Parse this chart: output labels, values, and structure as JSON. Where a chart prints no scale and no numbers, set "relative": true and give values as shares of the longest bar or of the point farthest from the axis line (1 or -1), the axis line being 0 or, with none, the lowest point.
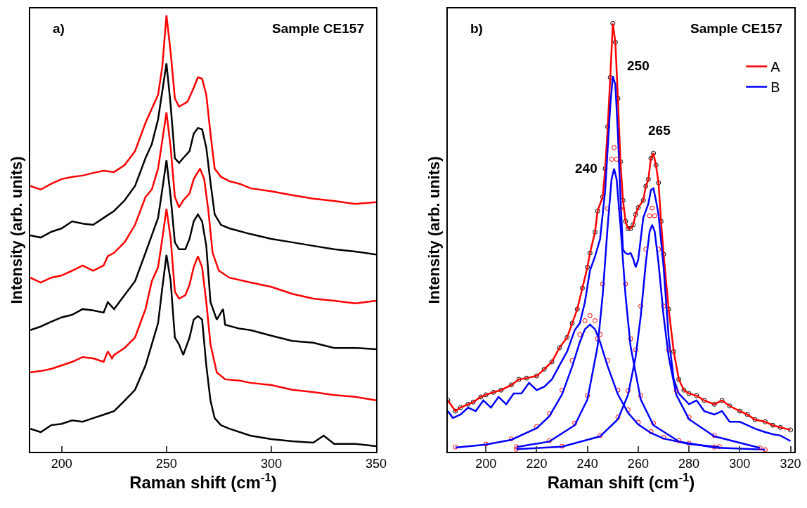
{
  "chart_data": [
    {
      "type": "line",
      "relative": true,
      "xlabel": "Raman shift (cm$^{-1}$)",
      "ylabel": "Intensity (arb. units)",
      "xlim": [
        185,
        350
      ],
      "xticks": [
        200,
        250,
        300,
        350
      ],
      "tick_labels": "x",
      "grid": false,
      "legend": false,
      "annotations": [
        "a)",
        "Sample CE157"
      ],
      "series": [
        {
          "color": "#ff0000",
          "x": [
            185,
            190,
            195,
            200,
            205,
            210,
            215,
            220,
            225,
            230,
            235,
            240,
            243,
            246,
            248,
            250,
            252,
            254,
            256,
            260,
            263,
            265,
            267,
            269,
            271,
            273,
            276,
            280,
            285,
            290,
            300,
            310,
            320,
            330,
            340,
            350
          ],
          "values": [
            0.609,
            0.601,
            0.614,
            0.625,
            0.63,
            0.633,
            0.639,
            0.644,
            0.641,
            0.657,
            0.689,
            0.754,
            0.786,
            0.818,
            0.882,
            1.0,
            0.915,
            0.81,
            0.791,
            0.802,
            0.834,
            0.858,
            0.855,
            0.818,
            0.729,
            0.649,
            0.63,
            0.62,
            0.614,
            0.604,
            0.597,
            0.588,
            0.58,
            0.575,
            0.568,
            0.572
          ]
        },
        {
          "color": "#000000",
          "x": [
            185,
            190,
            195,
            200,
            205,
            210,
            215,
            220,
            225,
            230,
            235,
            240,
            243,
            246,
            248,
            250,
            252,
            254,
            256,
            258,
            261,
            263,
            265,
            267,
            269,
            271,
            273,
            276,
            280,
            290,
            300,
            310,
            320,
            330,
            340,
            350
          ],
          "values": [
            0.496,
            0.491,
            0.504,
            0.512,
            0.528,
            0.523,
            0.52,
            0.536,
            0.552,
            0.576,
            0.609,
            0.673,
            0.705,
            0.762,
            0.826,
            0.89,
            0.794,
            0.673,
            0.662,
            0.673,
            0.689,
            0.729,
            0.742,
            0.739,
            0.697,
            0.617,
            0.544,
            0.52,
            0.512,
            0.499,
            0.488,
            0.48,
            0.472,
            0.464,
            0.459,
            0.452
          ]
        },
        {
          "color": "#ff0000",
          "x": [
            185,
            190,
            195,
            200,
            205,
            210,
            215,
            220,
            222,
            225,
            230,
            235,
            240,
            243,
            246,
            248,
            250,
            252,
            254,
            256,
            258,
            261,
            263,
            266,
            268,
            270,
            272,
            275,
            280,
            290,
            300,
            310,
            320,
            330,
            340,
            350
          ],
          "values": [
            0.399,
            0.388,
            0.399,
            0.404,
            0.415,
            0.427,
            0.415,
            0.427,
            0.448,
            0.456,
            0.48,
            0.52,
            0.584,
            0.601,
            0.649,
            0.713,
            0.778,
            0.697,
            0.584,
            0.56,
            0.576,
            0.592,
            0.625,
            0.649,
            0.625,
            0.552,
            0.456,
            0.415,
            0.399,
            0.388,
            0.378,
            0.362,
            0.351,
            0.346,
            0.34,
            0.346
          ]
        },
        {
          "color": "#000000",
          "x": [
            185,
            190,
            195,
            200,
            205,
            210,
            215,
            220,
            222,
            225,
            230,
            235,
            240,
            243,
            246,
            248,
            250,
            252,
            254,
            256,
            259,
            261,
            263,
            265,
            267,
            269,
            271,
            274,
            277,
            278,
            285,
            290,
            300,
            310,
            320,
            330,
            340,
            350
          ],
          "values": [
            0.279,
            0.287,
            0.298,
            0.308,
            0.314,
            0.327,
            0.324,
            0.319,
            0.343,
            0.327,
            0.359,
            0.391,
            0.456,
            0.496,
            0.536,
            0.601,
            0.668,
            0.584,
            0.48,
            0.464,
            0.464,
            0.488,
            0.528,
            0.544,
            0.528,
            0.472,
            0.343,
            0.303,
            0.327,
            0.291,
            0.282,
            0.279,
            0.266,
            0.254,
            0.25,
            0.238,
            0.238,
            0.235
          ]
        },
        {
          "color": "#ff0000",
          "x": [
            185,
            190,
            195,
            200,
            205,
            210,
            215,
            220,
            222,
            224,
            225,
            230,
            235,
            240,
            243,
            246,
            248,
            250,
            252,
            254,
            256,
            259,
            261,
            263,
            265,
            267,
            269,
            271,
            274,
            278,
            285,
            290,
            300,
            310,
            320,
            330,
            340,
            350
          ],
          "values": [
            0.182,
            0.185,
            0.19,
            0.198,
            0.206,
            0.217,
            0.214,
            0.206,
            0.23,
            0.214,
            0.222,
            0.238,
            0.262,
            0.327,
            0.391,
            0.423,
            0.488,
            0.557,
            0.488,
            0.367,
            0.351,
            0.359,
            0.383,
            0.423,
            0.448,
            0.423,
            0.343,
            0.246,
            0.182,
            0.166,
            0.163,
            0.158,
            0.153,
            0.142,
            0.137,
            0.13,
            0.126,
            0.118
          ]
        },
        {
          "color": "#000000",
          "x": [
            185,
            190,
            195,
            200,
            205,
            210,
            215,
            220,
            225,
            230,
            235,
            240,
            243,
            246,
            248,
            250,
            252,
            254,
            256,
            258,
            261,
            263,
            265,
            267,
            269,
            271,
            273,
            276,
            280,
            290,
            300,
            310,
            320,
            325,
            330,
            340,
            350
          ],
          "values": [
            0.053,
            0.045,
            0.061,
            0.064,
            0.072,
            0.069,
            0.077,
            0.085,
            0.093,
            0.117,
            0.142,
            0.198,
            0.246,
            0.295,
            0.375,
            0.451,
            0.391,
            0.262,
            0.246,
            0.222,
            0.262,
            0.303,
            0.311,
            0.303,
            0.198,
            0.117,
            0.077,
            0.061,
            0.053,
            0.037,
            0.029,
            0.024,
            0.021,
            0.037,
            0.018,
            0.018,
            0.013
          ]
        }
      ]
    },
    {
      "type": "line",
      "relative": true,
      "xlabel": "Raman shift (cm$^{-1}$)",
      "ylabel": "Intensity (arb. units)",
      "xlim": [
        185,
        321.5
      ],
      "xticks": [
        200,
        220,
        240,
        260,
        280,
        300,
        320
      ],
      "tick_labels": "x",
      "grid": false,
      "legend": "top right",
      "annotations": [
        "b)",
        "Sample CE157",
        "240",
        "250",
        "265"
      ],
      "series": [
        {
          "type": "scatter",
          "marker": "circle",
          "color": "#000000",
          "x": [
            185,
            188,
            190,
            193,
            195,
            198,
            200,
            203,
            206,
            210,
            213,
            216,
            220,
            223,
            226,
            229,
            232,
            234,
            236,
            238,
            240,
            241,
            243,
            244,
            246,
            247,
            248,
            249,
            250,
            251,
            252,
            253,
            254,
            255,
            256,
            257,
            258,
            259,
            260,
            262,
            263,
            264,
            265,
            266,
            267,
            268,
            269,
            270,
            272,
            274,
            276,
            278,
            280,
            283,
            286,
            290,
            293,
            296,
            300,
            303,
            306,
            310,
            313,
            316,
            320
          ],
          "values": [
            0.12,
            0.095,
            0.103,
            0.111,
            0.116,
            0.128,
            0.133,
            0.139,
            0.144,
            0.156,
            0.169,
            0.172,
            0.177,
            0.193,
            0.21,
            0.243,
            0.267,
            0.3,
            0.333,
            0.382,
            0.431,
            0.464,
            0.513,
            0.562,
            0.595,
            0.661,
            0.759,
            0.874,
            1.0,
            0.956,
            0.825,
            0.677,
            0.587,
            0.538,
            0.521,
            0.521,
            0.53,
            0.554,
            0.57,
            0.587,
            0.62,
            0.636,
            0.685,
            0.697,
            0.669,
            0.628,
            0.538,
            0.461,
            0.333,
            0.234,
            0.169,
            0.144,
            0.136,
            0.131,
            0.12,
            0.111,
            0.12,
            0.107,
            0.095,
            0.087,
            0.075,
            0.07,
            0.062,
            0.057,
            0.051
          ]
        },
        {
          "name": "A",
          "color": "#ff0000",
          "x": [
            185,
            188,
            190,
            193,
            195,
            198,
            200,
            203,
            206,
            210,
            213,
            216,
            220,
            223,
            226,
            229,
            232,
            234,
            236,
            238,
            240,
            241,
            243,
            244,
            246,
            247,
            248,
            249,
            250,
            251,
            252,
            253,
            254,
            255,
            256,
            257,
            258,
            259,
            260,
            262,
            263,
            264,
            265,
            266,
            267,
            268,
            269,
            270,
            272,
            274,
            276,
            278,
            280,
            283,
            286,
            290,
            293,
            296,
            300,
            303,
            306,
            310,
            313,
            316,
            320
          ],
          "values": [
            0.12,
            0.095,
            0.103,
            0.111,
            0.116,
            0.128,
            0.133,
            0.139,
            0.144,
            0.156,
            0.169,
            0.172,
            0.177,
            0.193,
            0.21,
            0.243,
            0.267,
            0.3,
            0.333,
            0.382,
            0.431,
            0.464,
            0.513,
            0.562,
            0.595,
            0.661,
            0.759,
            0.874,
            1.0,
            0.956,
            0.825,
            0.677,
            0.587,
            0.538,
            0.521,
            0.521,
            0.53,
            0.554,
            0.57,
            0.587,
            0.62,
            0.636,
            0.685,
            0.697,
            0.669,
            0.628,
            0.538,
            0.461,
            0.333,
            0.234,
            0.169,
            0.144,
            0.136,
            0.131,
            0.12,
            0.111,
            0.12,
            0.107,
            0.095,
            0.087,
            0.075,
            0.07,
            0.062,
            0.057,
            0.051
          ]
        },
        {
          "name": "B",
          "color": "#0000ff",
          "x": [
            185,
            187,
            190,
            193,
            196,
            199,
            202,
            205,
            208,
            211,
            214,
            217,
            220,
            223,
            226,
            229,
            232,
            235,
            237,
            239,
            241,
            243,
            245,
            247,
            248,
            249,
            250,
            251,
            252,
            253,
            254,
            255,
            256,
            257,
            258,
            259,
            260,
            262,
            264,
            265,
            266,
            267,
            268,
            270,
            272,
            274,
            276,
            280,
            283,
            286,
            290,
            293,
            296,
            300,
            303,
            306,
            310,
            313,
            316,
            320
          ],
          "values": [
            0.095,
            0.079,
            0.087,
            0.103,
            0.095,
            0.12,
            0.103,
            0.128,
            0.111,
            0.136,
            0.136,
            0.161,
            0.144,
            0.152,
            0.169,
            0.202,
            0.234,
            0.284,
            0.3,
            0.349,
            0.423,
            0.456,
            0.497,
            0.611,
            0.71,
            0.808,
            0.877,
            0.857,
            0.743,
            0.595,
            0.472,
            0.464,
            0.461,
            0.464,
            0.451,
            0.431,
            0.448,
            0.546,
            0.579,
            0.611,
            0.615,
            0.587,
            0.554,
            0.431,
            0.267,
            0.169,
            0.136,
            0.111,
            0.12,
            0.095,
            0.087,
            0.095,
            0.07,
            0.07,
            0.062,
            0.054,
            0.046,
            0.041,
            0.038,
            0.025
          ]
        },
        {
          "type": "scatter",
          "marker": "circle",
          "color": "#ff0000",
          "x": [
            188,
            200,
            210,
            220,
            225,
            230,
            234,
            237,
            239,
            241,
            243,
            245,
            248,
            252,
            256,
            260,
            265,
            270,
            280,
            292
          ],
          "values": [
            0.011,
            0.018,
            0.03,
            0.059,
            0.089,
            0.144,
            0.213,
            0.274,
            0.306,
            0.318,
            0.306,
            0.274,
            0.213,
            0.144,
            0.098,
            0.069,
            0.047,
            0.034,
            0.02,
            0.012
          ]
        },
        {
          "color": "#0000ff",
          "x": [
            188,
            200,
            210,
            220,
            225,
            230,
            234,
            237,
            239,
            241,
            243,
            245,
            248,
            252,
            256,
            260,
            265,
            270,
            280,
            292
          ],
          "values": [
            0.01,
            0.017,
            0.028,
            0.055,
            0.083,
            0.134,
            0.199,
            0.256,
            0.286,
            0.297,
            0.286,
            0.256,
            0.199,
            0.134,
            0.091,
            0.064,
            0.044,
            0.031,
            0.018,
            0.011
          ]
        },
        {
          "type": "scatter",
          "marker": "circle",
          "color": "#ff0000",
          "x": [
            212,
            225,
            235,
            240,
            244,
            246,
            248,
            249.5,
            250.5,
            251.5,
            253,
            255,
            257,
            261,
            266,
            276,
            290,
            310
          ],
          "values": [
            0.012,
            0.026,
            0.067,
            0.131,
            0.264,
            0.392,
            0.568,
            0.683,
            0.71,
            0.683,
            0.568,
            0.392,
            0.264,
            0.131,
            0.067,
            0.026,
            0.011,
            0.005
          ]
        },
        {
          "color": "#0000ff",
          "x": [
            212,
            225,
            235,
            240,
            244,
            246,
            248,
            249.5,
            250.5,
            251.5,
            253,
            255,
            257,
            261,
            266,
            276,
            290,
            310
          ],
          "values": [
            0.011,
            0.024,
            0.062,
            0.122,
            0.246,
            0.365,
            0.529,
            0.636,
            0.661,
            0.636,
            0.529,
            0.365,
            0.246,
            0.122,
            0.062,
            0.024,
            0.01,
            0.005
          ]
        },
        {
          "type": "scatter",
          "marker": "circle",
          "color": "#ff0000",
          "x": [
            212,
            230,
            245,
            252,
            256,
            259,
            261,
            263,
            264.5,
            265.5,
            266.5,
            268,
            270,
            272,
            275,
            280,
            290,
            308
          ],
          "values": [
            0.006,
            0.013,
            0.038,
            0.081,
            0.143,
            0.238,
            0.34,
            0.473,
            0.551,
            0.569,
            0.551,
            0.473,
            0.34,
            0.238,
            0.143,
            0.081,
            0.038,
            0.009
          ]
        },
        {
          "color": "#0000ff",
          "x": [
            212,
            230,
            245,
            252,
            256,
            259,
            261,
            263,
            264.5,
            265.5,
            266.5,
            268,
            270,
            272,
            275,
            280,
            290,
            308
          ],
          "values": [
            0.006,
            0.012,
            0.036,
            0.076,
            0.133,
            0.222,
            0.317,
            0.441,
            0.514,
            0.53,
            0.514,
            0.441,
            0.317,
            0.222,
            0.133,
            0.076,
            0.036,
            0.009
          ]
        }
      ]
    }
  ]
}
